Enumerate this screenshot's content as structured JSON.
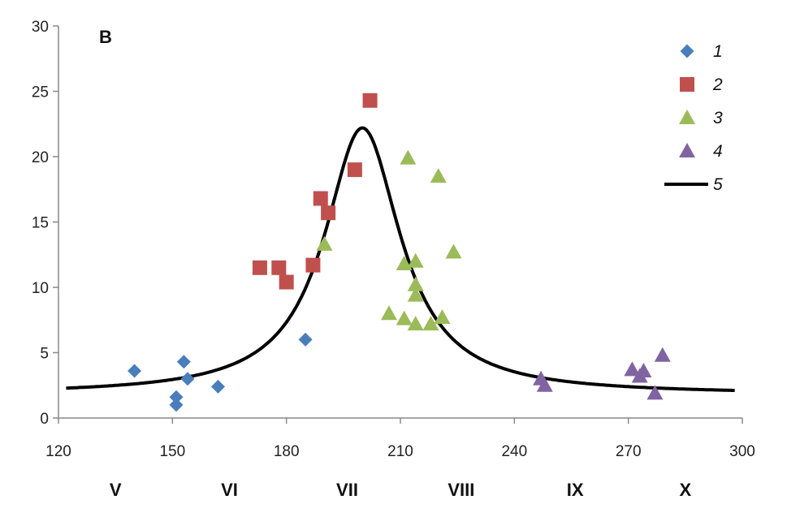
{
  "chart_data": {
    "type": "scatter",
    "panel_label": "B",
    "xlim": [
      120,
      300
    ],
    "ylim": [
      0,
      30
    ],
    "x_ticks": [
      120,
      150,
      180,
      210,
      240,
      270,
      300
    ],
    "y_ticks": [
      0,
      5,
      10,
      15,
      20,
      25,
      30
    ],
    "x_tick_labels": [
      "120",
      "150",
      "180",
      "210",
      "240",
      "270",
      "300"
    ],
    "y_tick_labels": [
      "0",
      "5",
      "10",
      "15",
      "20",
      "25",
      "30"
    ],
    "grid": false,
    "legend_position": "top-right",
    "month_labels": [
      {
        "text": "V",
        "x": 135
      },
      {
        "text": "VI",
        "x": 165
      },
      {
        "text": "VII",
        "x": 196
      },
      {
        "text": "VIII",
        "x": 226
      },
      {
        "text": "IX",
        "x": 256
      },
      {
        "text": "X",
        "x": 285
      }
    ],
    "series": [
      {
        "name": "1",
        "marker": "diamond",
        "color": "#4a7ebb",
        "points": [
          [
            140,
            3.6
          ],
          [
            151,
            1.6
          ],
          [
            151,
            1.0
          ],
          [
            153,
            4.3
          ],
          [
            154,
            3.0
          ],
          [
            162,
            2.4
          ],
          [
            185,
            6.0
          ]
        ]
      },
      {
        "name": "2",
        "marker": "square",
        "color": "#c0504d",
        "points": [
          [
            173,
            11.5
          ],
          [
            178,
            11.5
          ],
          [
            180,
            10.4
          ],
          [
            187,
            11.7
          ],
          [
            189,
            16.8
          ],
          [
            191,
            15.7
          ],
          [
            198,
            19.0
          ],
          [
            202,
            24.3
          ]
        ]
      },
      {
        "name": "3",
        "marker": "triangle",
        "color": "#9bbb59",
        "points": [
          [
            190,
            13.3
          ],
          [
            207,
            8.0
          ],
          [
            211,
            7.6
          ],
          [
            211,
            11.8
          ],
          [
            212,
            19.9
          ],
          [
            214,
            12.0
          ],
          [
            214,
            10.2
          ],
          [
            214,
            9.4
          ],
          [
            214,
            7.2
          ],
          [
            218,
            7.2
          ],
          [
            220,
            18.5
          ],
          [
            221,
            7.7
          ],
          [
            224,
            12.7
          ]
        ]
      },
      {
        "name": "4",
        "marker": "triangle",
        "color": "#8064a2",
        "points": [
          [
            247,
            3.0
          ],
          [
            248,
            2.5
          ],
          [
            271,
            3.7
          ],
          [
            273,
            3.2
          ],
          [
            274,
            3.6
          ],
          [
            277,
            1.9
          ],
          [
            279,
            4.8
          ]
        ]
      },
      {
        "name": "5",
        "marker": "line",
        "color": "#000000",
        "curve": {
          "baseline": 1.8,
          "amplitude": 20.4,
          "center": 200,
          "gamma": 12.2,
          "x_start": 122,
          "x_end": 298
        }
      }
    ]
  }
}
